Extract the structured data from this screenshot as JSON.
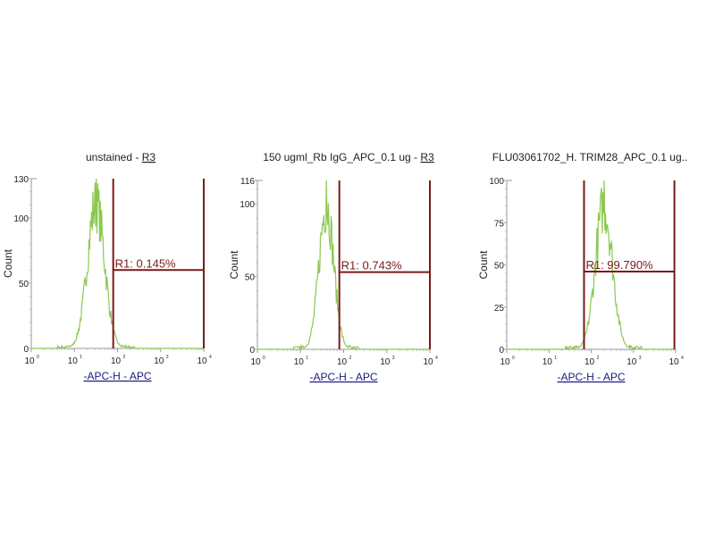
{
  "chart_data": [
    {
      "type": "histogram",
      "title": "unstained",
      "title_link": "R3",
      "xlabel": "-APC-H - APC",
      "ylabel": "Count",
      "xscale": "log",
      "xlim_decades": [
        0,
        4
      ],
      "xtick_labels": [
        "10",
        "10",
        "10",
        "10",
        "10"
      ],
      "xtick_exponents": [
        "0",
        "1",
        "2",
        "3",
        "4"
      ],
      "ylim": [
        0,
        130
      ],
      "yticks": [
        0,
        50,
        100,
        130
      ],
      "peak_decade": 1.5,
      "peak_count": 130,
      "spread_decades": 0.2,
      "gate": {
        "label": "R1: 0.145%",
        "start_decade": 1.9,
        "end_decade": 4.0,
        "level": 60
      }
    },
    {
      "type": "histogram",
      "title": "150 ugml_Rb IgG_APC_0.1 ug",
      "title_link": "R3",
      "xlabel": "-APC-H - APC",
      "ylabel": "Count",
      "xscale": "log",
      "xlim_decades": [
        0,
        4
      ],
      "xtick_labels": [
        "10",
        "10",
        "10",
        "10",
        "10"
      ],
      "xtick_exponents": [
        "0",
        "1",
        "2",
        "3",
        "4"
      ],
      "ylim": [
        0,
        116
      ],
      "yticks": [
        0,
        50,
        100,
        116
      ],
      "peak_decade": 1.6,
      "peak_count": 116,
      "spread_decades": 0.17,
      "gate": {
        "label": "R1: 0.743%",
        "start_decade": 1.9,
        "end_decade": 4.0,
        "level": 53
      }
    },
    {
      "type": "histogram",
      "title": "FLU03061702_H. TRIM28_APC_0.1 ug..",
      "title_link": "",
      "xlabel": "-APC-H - APC",
      "ylabel": "Count",
      "xscale": "log",
      "xlim_decades": [
        0,
        4
      ],
      "xtick_labels": [
        "10",
        "10",
        "10",
        "10",
        "10"
      ],
      "xtick_exponents": [
        "0",
        "1",
        "2",
        "3",
        "4"
      ],
      "ylim": [
        0,
        100
      ],
      "yticks": [
        0,
        25,
        50,
        75,
        100
      ],
      "peak_decade": 2.3,
      "peak_count": 100,
      "spread_decades": 0.2,
      "gate": {
        "label": "R1: 99.790%",
        "start_decade": 1.83,
        "end_decade": 3.97,
        "level": 46
      }
    }
  ],
  "colors": {
    "histogram": "#8cc850",
    "gate": "#7a1a1a",
    "axis": "#999999",
    "text": "#222222",
    "link": "#1a1a80"
  }
}
